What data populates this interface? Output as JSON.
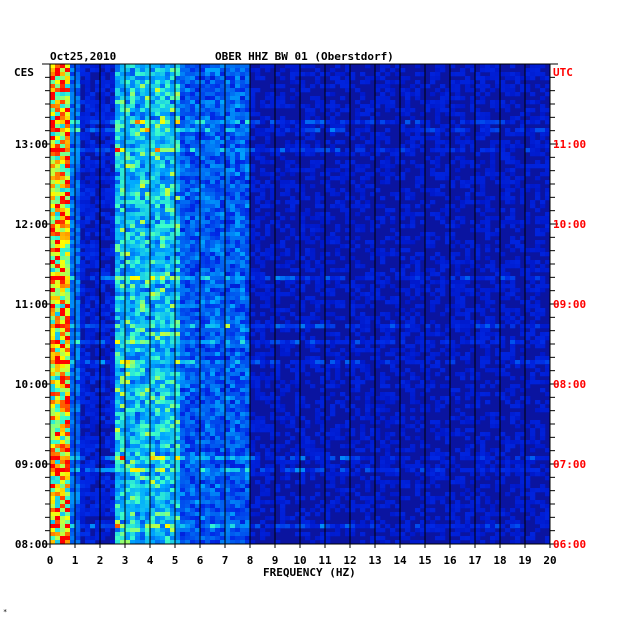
{
  "chart_data": {
    "type": "heatmap",
    "title_date": "Oct25,2010",
    "title_station": "OBER HHZ BW 01 (Oberstdorf)",
    "left_tz": "CES",
    "right_tz": "UTC",
    "xlabel": "FREQUENCY (HZ)",
    "x_ticks": [
      "0",
      "1",
      "2",
      "3",
      "4",
      "5",
      "6",
      "7",
      "8",
      "9",
      "10",
      "11",
      "12",
      "13",
      "14",
      "15",
      "16",
      "17",
      "18",
      "19",
      "20"
    ],
    "xlim": [
      0,
      20
    ],
    "left_time_labels": [
      "08:00",
      "09:00",
      "10:00",
      "11:00",
      "12:00",
      "13:00"
    ],
    "right_time_labels": [
      "06:00",
      "07:00",
      "08:00",
      "09:00",
      "10:00",
      "11:00"
    ],
    "time_range_ces": [
      "08:00",
      "14:00"
    ],
    "colors": {
      "background": "#0a14a0",
      "low": "#0000c8",
      "mid": "#00c8ff",
      "high": "#ffff00",
      "peak": "#ff0000",
      "right_axis_text": "#ff0000",
      "left_axis_text": "#000000"
    },
    "footnote": "*"
  }
}
